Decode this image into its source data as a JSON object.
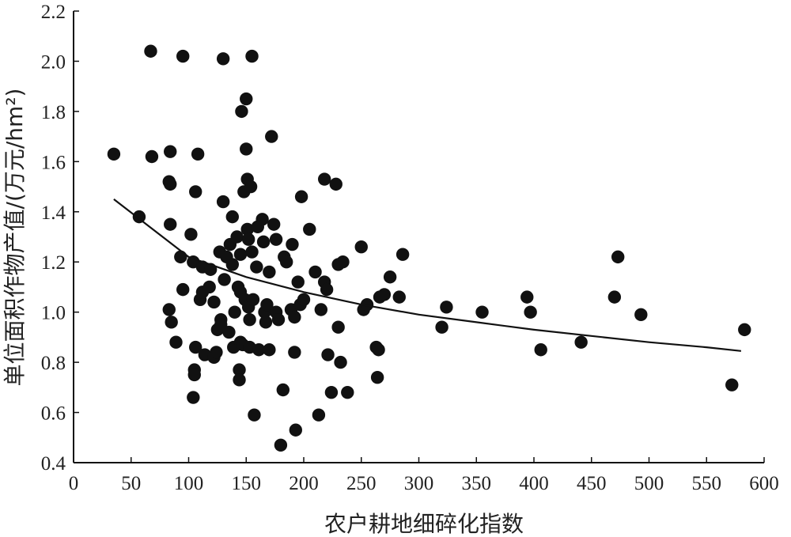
{
  "chart_data": {
    "type": "scatter",
    "xlabel": "农户耕地细碎化指数",
    "ylabel": "单位面积作物产值/(万元/hm²)",
    "xlim": [
      0,
      600
    ],
    "ylim": [
      0.4,
      2.2
    ],
    "xticks": [
      "0",
      "50",
      "100",
      "150",
      "200",
      "250",
      "300",
      "350",
      "400",
      "450",
      "500",
      "550",
      "600"
    ],
    "yticks": [
      "0.4",
      "0.6",
      "0.8",
      "1.0",
      "1.2",
      "1.4",
      "1.6",
      "1.8",
      "2.0",
      "2.2"
    ],
    "grid": false,
    "trendline": {
      "type": "logarithmic",
      "x": [
        35,
        100,
        150,
        200,
        250,
        300,
        350,
        400,
        450,
        500,
        550,
        580
      ],
      "y": [
        1.45,
        1.22,
        1.14,
        1.08,
        1.03,
        0.99,
        0.96,
        0.93,
        0.905,
        0.88,
        0.86,
        0.845
      ]
    },
    "points": [
      [
        35,
        1.63
      ],
      [
        57,
        1.38
      ],
      [
        67,
        2.04
      ],
      [
        68,
        1.62
      ],
      [
        84,
        1.64
      ],
      [
        83,
        1.52
      ],
      [
        84,
        1.51
      ],
      [
        84,
        1.35
      ],
      [
        83,
        1.01
      ],
      [
        85,
        0.96
      ],
      [
        89,
        0.88
      ],
      [
        93,
        1.22
      ],
      [
        95,
        2.02
      ],
      [
        95,
        1.09
      ],
      [
        102,
        1.31
      ],
      [
        104,
        1.2
      ],
      [
        106,
        1.48
      ],
      [
        108,
        1.63
      ],
      [
        106,
        0.86
      ],
      [
        105,
        0.77
      ],
      [
        105,
        0.75
      ],
      [
        104,
        0.66
      ],
      [
        110,
        1.05
      ],
      [
        112,
        1.08
      ],
      [
        112,
        1.18
      ],
      [
        114,
        0.83
      ],
      [
        118,
        1.1
      ],
      [
        119,
        1.17
      ],
      [
        122,
        1.04
      ],
      [
        122,
        0.82
      ],
      [
        124,
        0.84
      ],
      [
        125,
        0.93
      ],
      [
        127,
        1.24
      ],
      [
        128,
        0.97
      ],
      [
        128,
        0.95
      ],
      [
        130,
        1.44
      ],
      [
        130,
        2.01
      ],
      [
        131,
        1.13
      ],
      [
        133,
        1.22
      ],
      [
        135,
        0.92
      ],
      [
        136,
        1.27
      ],
      [
        138,
        1.38
      ],
      [
        138,
        1.19
      ],
      [
        139,
        0.86
      ],
      [
        140,
        1.0
      ],
      [
        142,
        1.3
      ],
      [
        143,
        1.1
      ],
      [
        145,
        1.23
      ],
      [
        145,
        1.08
      ],
      [
        144,
        0.77
      ],
      [
        144,
        0.73
      ],
      [
        145,
        0.88
      ],
      [
        146,
        1.8
      ],
      [
        147,
        0.87
      ],
      [
        148,
        1.48
      ],
      [
        149,
        1.05
      ],
      [
        150,
        1.85
      ],
      [
        150,
        1.65
      ],
      [
        151,
        1.53
      ],
      [
        151,
        1.33
      ],
      [
        152,
        1.29
      ],
      [
        152,
        1.02
      ],
      [
        153,
        0.97
      ],
      [
        153,
        0.86
      ],
      [
        154,
        1.5
      ],
      [
        155,
        2.02
      ],
      [
        155,
        1.24
      ],
      [
        156,
        1.05
      ],
      [
        157,
        0.59
      ],
      [
        159,
        1.18
      ],
      [
        160,
        1.34
      ],
      [
        161,
        0.85
      ],
      [
        164,
        1.37
      ],
      [
        165,
        1.28
      ],
      [
        166,
        1.0
      ],
      [
        167,
        0.96
      ],
      [
        168,
        1.03
      ],
      [
        170,
        1.16
      ],
      [
        170,
        0.85
      ],
      [
        172,
        1.7
      ],
      [
        174,
        1.35
      ],
      [
        176,
        1.29
      ],
      [
        176,
        1.0
      ],
      [
        178,
        0.97
      ],
      [
        180,
        0.47
      ],
      [
        182,
        0.69
      ],
      [
        183,
        1.22
      ],
      [
        185,
        1.2
      ],
      [
        189,
        1.01
      ],
      [
        190,
        1.27
      ],
      [
        192,
        0.98
      ],
      [
        192,
        0.84
      ],
      [
        193,
        0.53
      ],
      [
        195,
        1.12
      ],
      [
        197,
        1.03
      ],
      [
        198,
        1.46
      ],
      [
        200,
        1.05
      ],
      [
        205,
        1.33
      ],
      [
        210,
        1.16
      ],
      [
        213,
        0.59
      ],
      [
        215,
        1.01
      ],
      [
        218,
        1.53
      ],
      [
        218,
        1.12
      ],
      [
        220,
        1.09
      ],
      [
        221,
        0.83
      ],
      [
        224,
        0.68
      ],
      [
        228,
        1.51
      ],
      [
        230,
        0.94
      ],
      [
        230,
        1.19
      ],
      [
        232,
        0.8
      ],
      [
        234,
        1.2
      ],
      [
        238,
        0.68
      ],
      [
        250,
        1.26
      ],
      [
        252,
        1.01
      ],
      [
        255,
        1.03
      ],
      [
        263,
        0.86
      ],
      [
        264,
        0.74
      ],
      [
        265,
        0.85
      ],
      [
        266,
        1.06
      ],
      [
        270,
        1.07
      ],
      [
        275,
        1.14
      ],
      [
        283,
        1.06
      ],
      [
        286,
        1.23
      ],
      [
        320,
        0.94
      ],
      [
        324,
        1.02
      ],
      [
        355,
        1.0
      ],
      [
        394,
        1.06
      ],
      [
        397,
        1.0
      ],
      [
        406,
        0.85
      ],
      [
        441,
        0.88
      ],
      [
        470,
        1.06
      ],
      [
        473,
        1.22
      ],
      [
        493,
        0.99
      ],
      [
        572,
        0.71
      ],
      [
        583,
        0.93
      ]
    ]
  }
}
